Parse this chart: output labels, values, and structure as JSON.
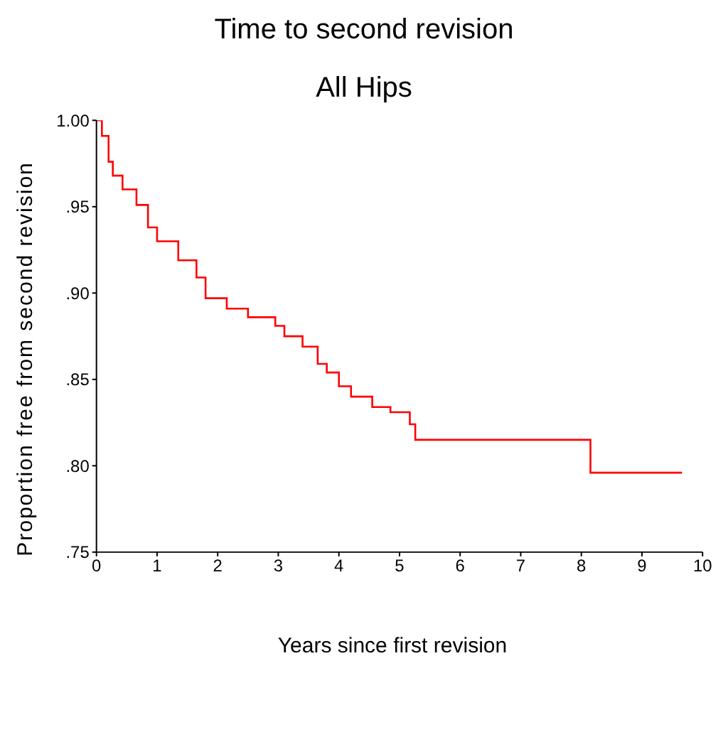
{
  "chart_data": {
    "type": "step",
    "title": "Time to second revision",
    "subtitle": "All Hips",
    "xlabel": "Years since first revision",
    "ylabel": "Proportion free from second revision",
    "x": [
      0,
      0.09,
      0.2,
      0.27,
      0.43,
      0.66,
      0.85,
      1.0,
      1.35,
      1.65,
      1.8,
      2.15,
      2.5,
      2.95,
      3.1,
      3.4,
      3.65,
      3.8,
      4.0,
      4.2,
      4.55,
      4.85,
      5.17,
      5.26,
      5.5,
      8.15,
      9.66
    ],
    "series": [
      {
        "color": "#ff0000",
        "values": [
          1.0,
          0.991,
          0.976,
          0.968,
          0.96,
          0.951,
          0.938,
          0.93,
          0.919,
          0.909,
          0.897,
          0.891,
          0.886,
          0.881,
          0.875,
          0.869,
          0.859,
          0.854,
          0.846,
          0.84,
          0.834,
          0.831,
          0.824,
          0.815,
          0.815,
          0.796,
          0.796
        ]
      }
    ],
    "xlim": [
      0,
      10
    ],
    "xticks": [
      0,
      1,
      2,
      3,
      4,
      5,
      6,
      7,
      8,
      9,
      10
    ],
    "ylim": [
      0.75,
      1.0
    ],
    "yticks": [
      {
        "value": 0.75,
        "label": ".75"
      },
      {
        "value": 0.8,
        "label": ".80"
      },
      {
        "value": 0.85,
        "label": ".85"
      },
      {
        "value": 0.9,
        "label": ".90"
      },
      {
        "value": 0.95,
        "label": ".95"
      },
      {
        "value": 1.0,
        "label": "1.00"
      }
    ],
    "grid": false,
    "legend": false
  }
}
